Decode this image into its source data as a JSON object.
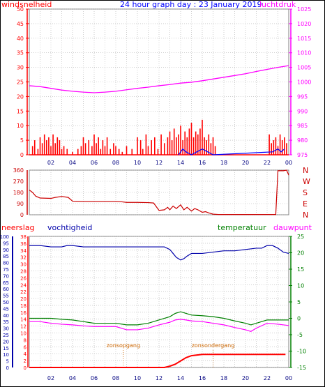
{
  "header": {
    "left_label": "windsnelheid",
    "title": "24 hour graph day : 23 January 2019",
    "right_label": "luchtdruk"
  },
  "colors": {
    "wind": "#ff0000",
    "pressure": "#ff00ff",
    "title": "#0000ff",
    "direction": "#cc0000",
    "humidity": "#0000aa",
    "temperature": "#008000",
    "dewpoint": "#ff00ff",
    "rain": "#ff0000",
    "sun": "#cc6600",
    "grid": "#b0b0b0"
  },
  "x_ticks": [
    "02",
    "04",
    "06",
    "08",
    "10",
    "12",
    "14",
    "16",
    "18",
    "20",
    "22",
    "00"
  ],
  "chart_data": [
    {
      "type": "bar",
      "title": "24 hour graph day : 23 January 2019",
      "xlabel": "",
      "ylabel": "windsnelheid",
      "y2label": "luchtdruk",
      "xlim_hours": [
        0,
        24
      ],
      "ylim": [
        0,
        50
      ],
      "y_ticks": [
        0,
        5,
        10,
        15,
        20,
        25,
        30,
        35,
        40,
        45,
        50
      ],
      "y2lim": [
        975,
        1025
      ],
      "y2_ticks": [
        975,
        980,
        985,
        990,
        995,
        1000,
        1005,
        1010,
        1015,
        1020,
        1025
      ],
      "pressure_series": {
        "x": [
          0,
          1,
          2,
          3,
          4,
          5,
          6,
          7,
          8,
          9,
          10,
          11,
          12,
          13,
          14,
          15,
          16,
          17,
          18,
          19,
          20,
          21,
          22,
          23,
          24
        ],
        "values": [
          998.7,
          998.4,
          997.8,
          997.2,
          996.8,
          996.5,
          996.3,
          996.5,
          996.8,
          997.3,
          997.8,
          998.2,
          998.7,
          999.1,
          999.6,
          999.9,
          1000.4,
          1001.0,
          1001.6,
          1002.2,
          1002.8,
          1003.6,
          1004.3,
          1005.0,
          1005.6
        ]
      },
      "gust_bars": {
        "x": [
          0.3,
          0.5,
          0.8,
          1.0,
          1.2,
          1.4,
          1.6,
          1.8,
          2.0,
          2.2,
          2.4,
          2.6,
          2.8,
          3.0,
          3.2,
          3.5,
          4.0,
          4.5,
          4.8,
          5.0,
          5.2,
          5.5,
          5.8,
          6.0,
          6.2,
          6.4,
          6.6,
          6.8,
          7.0,
          7.2,
          7.5,
          7.8,
          8.0,
          8.3,
          8.6,
          9.0,
          9.5,
          10.0,
          10.3,
          10.5,
          10.8,
          11.0,
          11.3,
          11.6,
          11.9,
          12.2,
          12.5,
          12.8,
          13.0,
          13.2,
          13.4,
          13.6,
          13.8,
          14.0,
          14.2,
          14.4,
          14.6,
          14.8,
          15.0,
          15.2,
          15.4,
          15.6,
          15.8,
          16.0,
          16.2,
          16.4,
          16.6,
          16.8,
          17.0,
          17.2,
          22.2,
          22.4,
          22.6,
          22.8,
          23.0,
          23.2,
          23.4,
          23.6,
          23.8
        ],
        "values": [
          3,
          5,
          2,
          6,
          4,
          7,
          5,
          6,
          3,
          7,
          4,
          6,
          5,
          2,
          3,
          2,
          1,
          2,
          3,
          6,
          4,
          5,
          3,
          7,
          4,
          6,
          2,
          5,
          3,
          6,
          2,
          4,
          3,
          2,
          1,
          3,
          2,
          6,
          5,
          2,
          7,
          3,
          5,
          6,
          2,
          7,
          4,
          6,
          8,
          5,
          9,
          6,
          7,
          10,
          5,
          8,
          6,
          9,
          11,
          6,
          8,
          7,
          9,
          12,
          6,
          5,
          7,
          4,
          6,
          3,
          7,
          4,
          5,
          6,
          3,
          7,
          5,
          6,
          4
        ]
      },
      "wind_series": {
        "x": [
          13.8,
          14.0,
          14.2,
          14.5,
          15.0,
          15.5,
          16.0,
          16.5,
          17.0,
          22.5,
          23.0,
          23.3,
          23.6
        ],
        "values": [
          0,
          1,
          2,
          1,
          0,
          1,
          2,
          1,
          0,
          1,
          2,
          1,
          2
        ]
      }
    },
    {
      "type": "line",
      "xlabel": "",
      "ylabel": "",
      "xlim_hours": [
        0,
        24
      ],
      "ylim": [
        0,
        360
      ],
      "y_ticks": [
        0,
        90,
        180,
        270,
        360
      ],
      "right_labels": [
        "N",
        "W",
        "S",
        "E",
        "N"
      ],
      "series": [
        {
          "x": [
            0,
            0.3,
            0.6,
            1.0,
            2.0,
            2.4,
            3.0,
            3.6,
            4.0,
            5.0,
            6.0,
            7.0,
            8.0,
            8.5,
            9.0,
            10.0,
            11.0,
            11.5,
            12.0,
            12.5,
            12.8,
            13.0,
            13.3,
            13.6,
            14.0,
            14.3,
            14.6,
            15.0,
            15.3,
            15.6,
            16.0,
            16.3,
            16.6,
            17.0,
            17.5,
            18.0,
            19.0,
            20.0,
            21.0,
            22.0,
            22.8,
            23.0,
            23.5,
            23.8,
            24.0
          ],
          "values": [
            200,
            180,
            150,
            135,
            132,
            140,
            148,
            140,
            110,
            108,
            108,
            108,
            108,
            105,
            100,
            100,
            98,
            95,
            35,
            40,
            60,
            40,
            70,
            50,
            80,
            40,
            60,
            30,
            50,
            40,
            20,
            25,
            15,
            5,
            2,
            2,
            2,
            2,
            2,
            2,
            2,
            355,
            355,
            360,
            320
          ]
        }
      ]
    },
    {
      "type": "line",
      "xlabel": "",
      "left_labels": [
        "neerslag",
        "vochtigheid"
      ],
      "right_labels": [
        "temperatuur",
        "dauwpunt"
      ],
      "xlim_hours": [
        0,
        24
      ],
      "rain_ylim": [
        0,
        20
      ],
      "rain_ticks": [
        0,
        2,
        4,
        6,
        8,
        10,
        12,
        14,
        16,
        18,
        20,
        22,
        24,
        26,
        28,
        30,
        32,
        34,
        36,
        38
      ],
      "humidity_ylim": [
        0,
        100
      ],
      "humidity_ticks": [
        0,
        5,
        10,
        15,
        20,
        25,
        30,
        35,
        40,
        45,
        50,
        55,
        60,
        65,
        70,
        75,
        80,
        85,
        90,
        95,
        100
      ],
      "temp_ylim": [
        -15,
        25
      ],
      "temp_ticks": [
        -15,
        -10,
        -5,
        0,
        5,
        10,
        15,
        20,
        25
      ],
      "annotations": [
        {
          "text": "zonsopgang",
          "x_hour": 8.7
        },
        {
          "text": "zonsondergang",
          "x_hour": 17.0
        }
      ],
      "series": [
        {
          "name": "vochtigheid",
          "x": [
            0,
            1,
            2,
            3,
            3.5,
            4,
            5,
            6,
            7,
            8,
            9,
            10,
            11,
            12,
            12.5,
            13,
            13.3,
            13.6,
            14.0,
            14.3,
            14.6,
            15,
            16,
            17,
            18,
            19,
            20,
            21,
            21.5,
            22,
            22.5,
            23,
            23.5,
            24
          ],
          "values": [
            93,
            93,
            92,
            92,
            93,
            93,
            92,
            92,
            92,
            92,
            92,
            92,
            92,
            92,
            92,
            90,
            87,
            84,
            82,
            83,
            85,
            87,
            87,
            88,
            89,
            89,
            90,
            91,
            91,
            93,
            93,
            91,
            88,
            87
          ]
        },
        {
          "name": "temperatuur",
          "x": [
            0,
            1,
            2,
            3,
            4,
            5,
            6,
            7,
            8,
            9,
            10,
            11,
            12,
            13,
            13.5,
            14,
            14.5,
            15,
            16,
            17,
            18,
            19,
            20,
            20.5,
            21,
            22,
            23,
            24
          ],
          "values": [
            0,
            0,
            0,
            -0.3,
            -0.5,
            -1,
            -1.5,
            -1.5,
            -1.5,
            -2,
            -2,
            -1.5,
            -0.5,
            0.5,
            1.5,
            2,
            1.5,
            1,
            0.8,
            0.5,
            0,
            -0.8,
            -1.5,
            -2,
            -1.5,
            -0.5,
            -0.5,
            -0.5
          ]
        },
        {
          "name": "dauwpunt",
          "x": [
            0,
            1,
            2,
            3,
            4,
            5,
            6,
            7,
            8,
            9,
            10,
            11,
            12,
            13,
            13.5,
            14,
            14.5,
            15,
            16,
            17,
            18,
            19,
            20,
            20.5,
            21,
            22,
            23,
            24
          ],
          "values": [
            -1,
            -1,
            -1.5,
            -1.8,
            -2,
            -2.3,
            -2.5,
            -2.5,
            -2.5,
            -3.5,
            -3.5,
            -3,
            -2,
            -1.2,
            -0.5,
            -0.3,
            -0.5,
            -0.8,
            -1,
            -1.5,
            -2,
            -2.8,
            -3.5,
            -4,
            -3,
            -1.5,
            -1.8,
            -2.2
          ]
        },
        {
          "name": "neerslag",
          "x": [
            0,
            12.5,
            13,
            13.5,
            14,
            14.5,
            15,
            16,
            17,
            18,
            19,
            20,
            20.5,
            21,
            22,
            23,
            23.7
          ],
          "values": [
            0,
            0,
            0.2,
            0.5,
            1,
            1.5,
            1.8,
            2,
            2,
            2,
            2,
            2,
            2,
            2,
            2,
            2,
            2
          ]
        }
      ]
    }
  ]
}
